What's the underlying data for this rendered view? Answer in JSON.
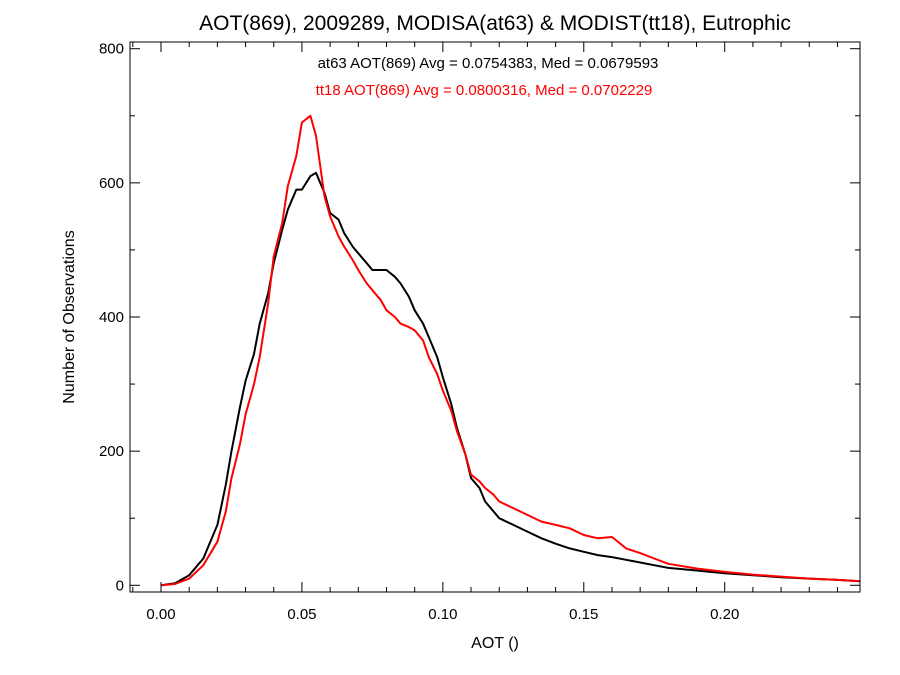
{
  "chart_data": {
    "type": "line",
    "title": "AOT(869), 2009289, MODISA(at63) & MODIST(tt18), Eutrophic",
    "xlabel": "AOT ()",
    "ylabel": "Number of Observations",
    "xlim": [
      -0.011,
      0.248
    ],
    "ylim": [
      -10,
      810
    ],
    "x_ticks": [
      0.0,
      0.05,
      0.1,
      0.15,
      0.2
    ],
    "x_tick_labels": [
      "0.00",
      "0.05",
      "0.10",
      "0.15",
      "0.20"
    ],
    "y_ticks": [
      0,
      200,
      400,
      600,
      800
    ],
    "y_tick_labels": [
      "0",
      "200",
      "400",
      "600",
      "800"
    ],
    "grid": false,
    "annotations": [
      {
        "text": "at63 AOT(869) Avg = 0.0754383, Med = 0.0679593",
        "color": "#000000"
      },
      {
        "text": "tt18 AOT(869) Avg = 0.0800316, Med = 0.0702229",
        "color": "#ff0000"
      }
    ],
    "series": [
      {
        "color": "#000000",
        "x": [
          0.0,
          0.005,
          0.01,
          0.015,
          0.02,
          0.023,
          0.025,
          0.028,
          0.03,
          0.033,
          0.035,
          0.038,
          0.04,
          0.043,
          0.045,
          0.048,
          0.05,
          0.053,
          0.055,
          0.058,
          0.06,
          0.063,
          0.065,
          0.068,
          0.07,
          0.073,
          0.075,
          0.078,
          0.08,
          0.083,
          0.085,
          0.088,
          0.09,
          0.093,
          0.095,
          0.098,
          0.1,
          0.103,
          0.105,
          0.108,
          0.11,
          0.113,
          0.115,
          0.118,
          0.12,
          0.125,
          0.13,
          0.135,
          0.14,
          0.145,
          0.15,
          0.155,
          0.16,
          0.165,
          0.17,
          0.175,
          0.18,
          0.19,
          0.2,
          0.21,
          0.22,
          0.23,
          0.24,
          0.248
        ],
        "values": [
          0,
          3,
          15,
          40,
          90,
          150,
          200,
          265,
          305,
          345,
          390,
          435,
          480,
          530,
          560,
          590,
          590,
          610,
          615,
          585,
          555,
          545,
          525,
          505,
          495,
          480,
          470,
          470,
          470,
          460,
          450,
          430,
          410,
          390,
          370,
          340,
          310,
          270,
          235,
          195,
          160,
          145,
          125,
          110,
          100,
          90,
          80,
          70,
          62,
          55,
          50,
          45,
          42,
          38,
          34,
          30,
          26,
          22,
          18,
          15,
          12,
          10,
          8,
          6
        ]
      },
      {
        "color": "#ff0000",
        "x": [
          0.0,
          0.005,
          0.01,
          0.015,
          0.02,
          0.023,
          0.025,
          0.028,
          0.03,
          0.033,
          0.035,
          0.038,
          0.04,
          0.043,
          0.045,
          0.048,
          0.05,
          0.053,
          0.055,
          0.058,
          0.06,
          0.063,
          0.065,
          0.068,
          0.07,
          0.073,
          0.075,
          0.078,
          0.08,
          0.083,
          0.085,
          0.088,
          0.09,
          0.093,
          0.095,
          0.098,
          0.1,
          0.103,
          0.105,
          0.108,
          0.11,
          0.113,
          0.115,
          0.118,
          0.12,
          0.125,
          0.13,
          0.135,
          0.14,
          0.145,
          0.15,
          0.155,
          0.16,
          0.165,
          0.17,
          0.175,
          0.18,
          0.19,
          0.2,
          0.21,
          0.22,
          0.23,
          0.24,
          0.248
        ],
        "values": [
          0,
          2,
          10,
          30,
          65,
          110,
          160,
          210,
          255,
          300,
          340,
          420,
          490,
          540,
          595,
          640,
          690,
          700,
          670,
          580,
          550,
          520,
          505,
          485,
          470,
          450,
          440,
          425,
          410,
          400,
          390,
          385,
          380,
          365,
          340,
          315,
          290,
          260,
          230,
          195,
          165,
          155,
          145,
          135,
          125,
          115,
          105,
          95,
          90,
          85,
          75,
          70,
          72,
          55,
          48,
          40,
          32,
          25,
          20,
          16,
          13,
          10,
          8,
          6
        ]
      }
    ]
  }
}
